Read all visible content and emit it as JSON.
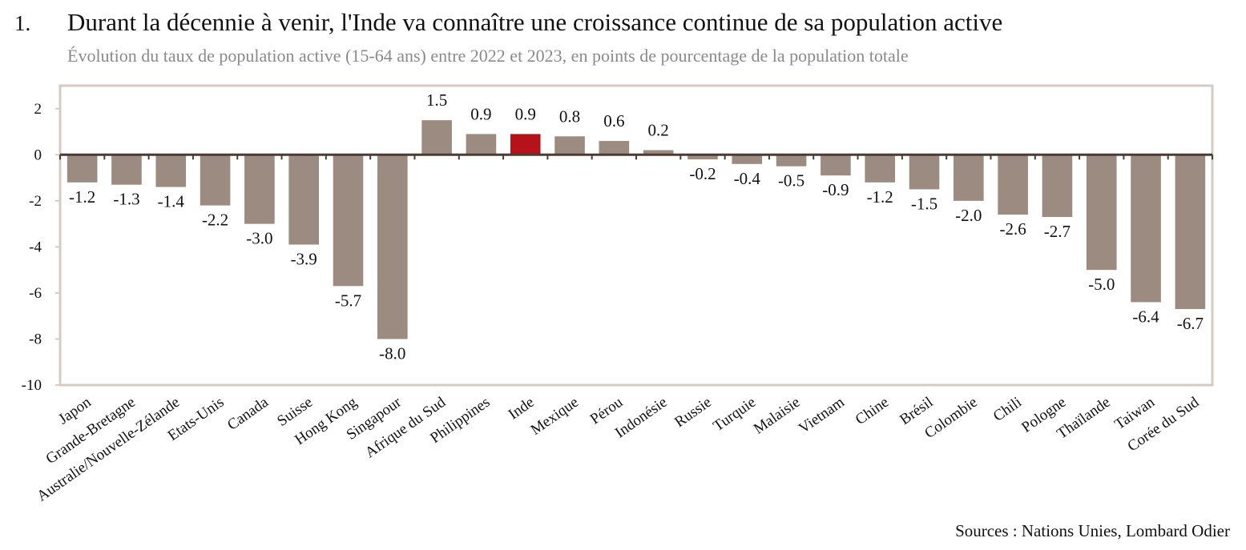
{
  "figure": {
    "number": "1.",
    "title": "Durant la décennie à venir, l'Inde va connaître une croissance continue de sa population active",
    "subtitle": "Évolution du taux de population active (15-64 ans) entre 2022 et 2023, en points de pourcentage de la population totale",
    "source": "Sources : Nations Unies, Lombard Odier"
  },
  "colors": {
    "bar": "#9c8b80",
    "highlight": "#b5121b",
    "frame": "#d6cbc3",
    "zero_axis": "#4a3b33"
  },
  "chart_data": {
    "type": "bar",
    "categories": [
      "Japon",
      "Grande-Bretagne",
      "Australie/Nouvelle-Zélande",
      "Etats-Unis",
      "Canada",
      "Suisse",
      "Hong Kong",
      "Singapour",
      "Afrique du Sud",
      "Philippines",
      "Inde",
      "Mexique",
      "Pérou",
      "Indonésie",
      "Russie",
      "Turquie",
      "Malaisie",
      "Vietnam",
      "Chine",
      "Brésil",
      "Colombie",
      "Chili",
      "Pologne",
      "Thaïlande",
      "Taiwan",
      "Corée du Sud"
    ],
    "values": [
      -1.2,
      -1.3,
      -1.4,
      -2.2,
      -3.0,
      -3.9,
      -5.7,
      -8.0,
      1.5,
      0.9,
      0.9,
      0.8,
      0.6,
      0.2,
      -0.2,
      -0.4,
      -0.5,
      -0.9,
      -1.2,
      -1.5,
      -2.0,
      -2.6,
      -2.7,
      -5.0,
      -6.4,
      -6.7
    ],
    "labels": [
      "-1.2",
      "-1.3",
      "-1.4",
      "-2.2",
      "-3.0",
      "-3.9",
      "-5.7",
      "-8.0",
      "1.5",
      "0.9",
      "0.9",
      "0.8",
      "0.6",
      "0.2",
      "-0.2",
      "-0.4",
      "-0.5",
      "-0.9",
      "-1.2",
      "-1.5",
      "-2.0",
      "-2.6",
      "-2.7",
      "-5.0",
      "-6.4",
      "-6.7"
    ],
    "highlight": "Inde",
    "ylim": [
      -10,
      3
    ],
    "yticks": [
      2,
      0,
      -2,
      -4,
      -6,
      -8,
      -10
    ],
    "title": "Durant la décennie à venir, l'Inde va connaître une croissance continue de sa population active",
    "subtitle": "Évolution du taux de population active (15-64 ans) entre 2022 et 2023, en points de pourcentage de la population totale",
    "xlabel": "",
    "ylabel": "",
    "grid": false,
    "legend": "none"
  }
}
